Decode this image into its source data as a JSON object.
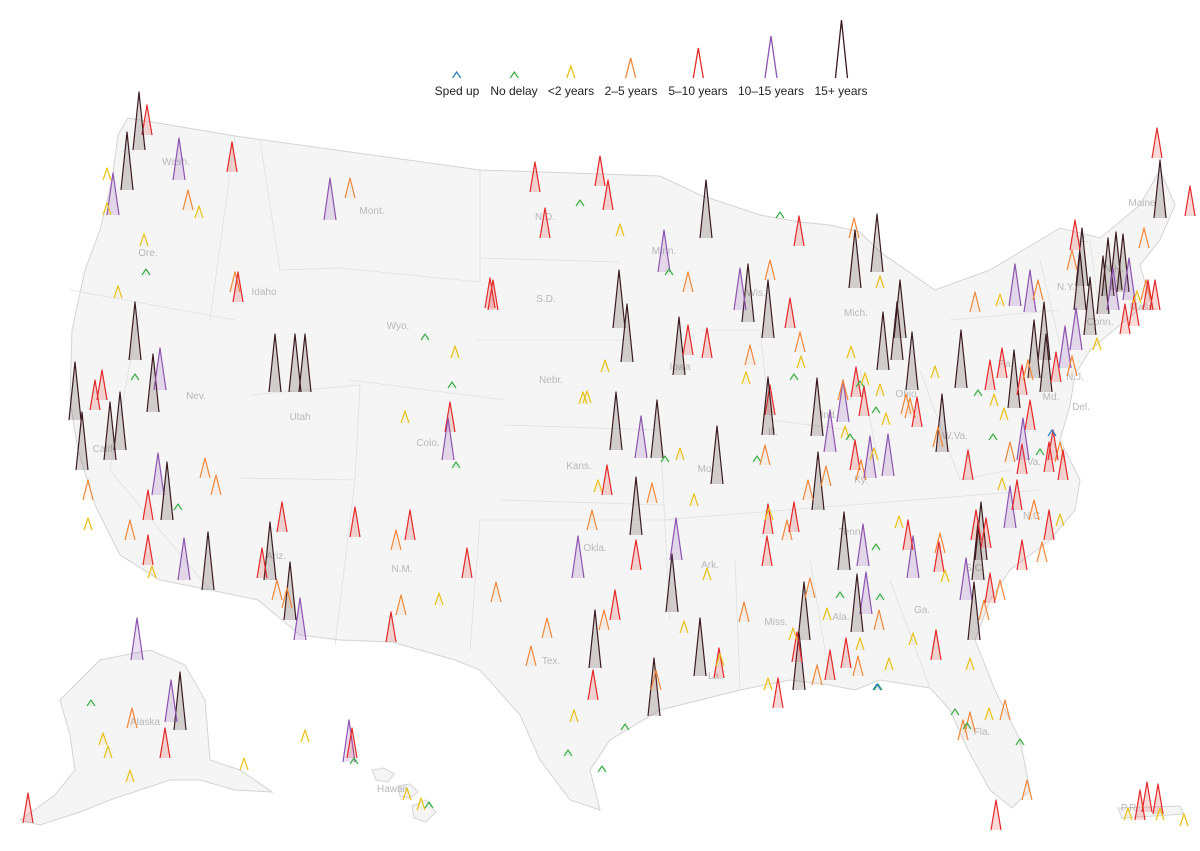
{
  "legend": [
    {
      "id": "sped-up",
      "label": "Sped up",
      "color": "#2f7fc1",
      "level": 0
    },
    {
      "id": "no-delay",
      "label": "No delay",
      "color": "#3fae49",
      "level": 1
    },
    {
      "id": "lt-2",
      "label": "<2 years",
      "color": "#e8c21c",
      "level": 2
    },
    {
      "id": "2-5",
      "label": "2–5 years",
      "color": "#f0883a",
      "level": 3
    },
    {
      "id": "5-10",
      "label": "5–10 years",
      "color": "#e52a2a",
      "level": 4
    },
    {
      "id": "10-15",
      "label": "10–15 years",
      "color": "#8e55b0",
      "level": 5
    },
    {
      "id": "15-plus",
      "label": "15+ years",
      "color": "#3a1a1e",
      "level": 6
    }
  ],
  "state_labels": [
    "Wash.",
    "Ore.",
    "Idaho",
    "Mont.",
    "N.D.",
    "Minn.",
    "S.D.",
    "Wyo.",
    "Nebr.",
    "Nev.",
    "Calif.",
    "Utah",
    "Colo.",
    "Kans.",
    "Iowa",
    "Mo.",
    "Ariz.",
    "N.M.",
    "Okla.",
    "Ark.",
    "Tex.",
    "La.",
    "Miss.",
    "Ala.",
    "Ga.",
    "Fla.",
    "Tenn.",
    "Ky.",
    "Ohio",
    "Ind.",
    "Ill.",
    "Wis.",
    "Mich.",
    "Pa.",
    "N.Y.",
    "Vt.",
    "N.H.",
    "Maine",
    "Mass.",
    "Conn.",
    "N.J.",
    "Md.",
    "Del.",
    "Va.",
    "W.Va.",
    "N.C.",
    "S.C.",
    "Alaska",
    "Hawaii",
    "P.R."
  ]
}
